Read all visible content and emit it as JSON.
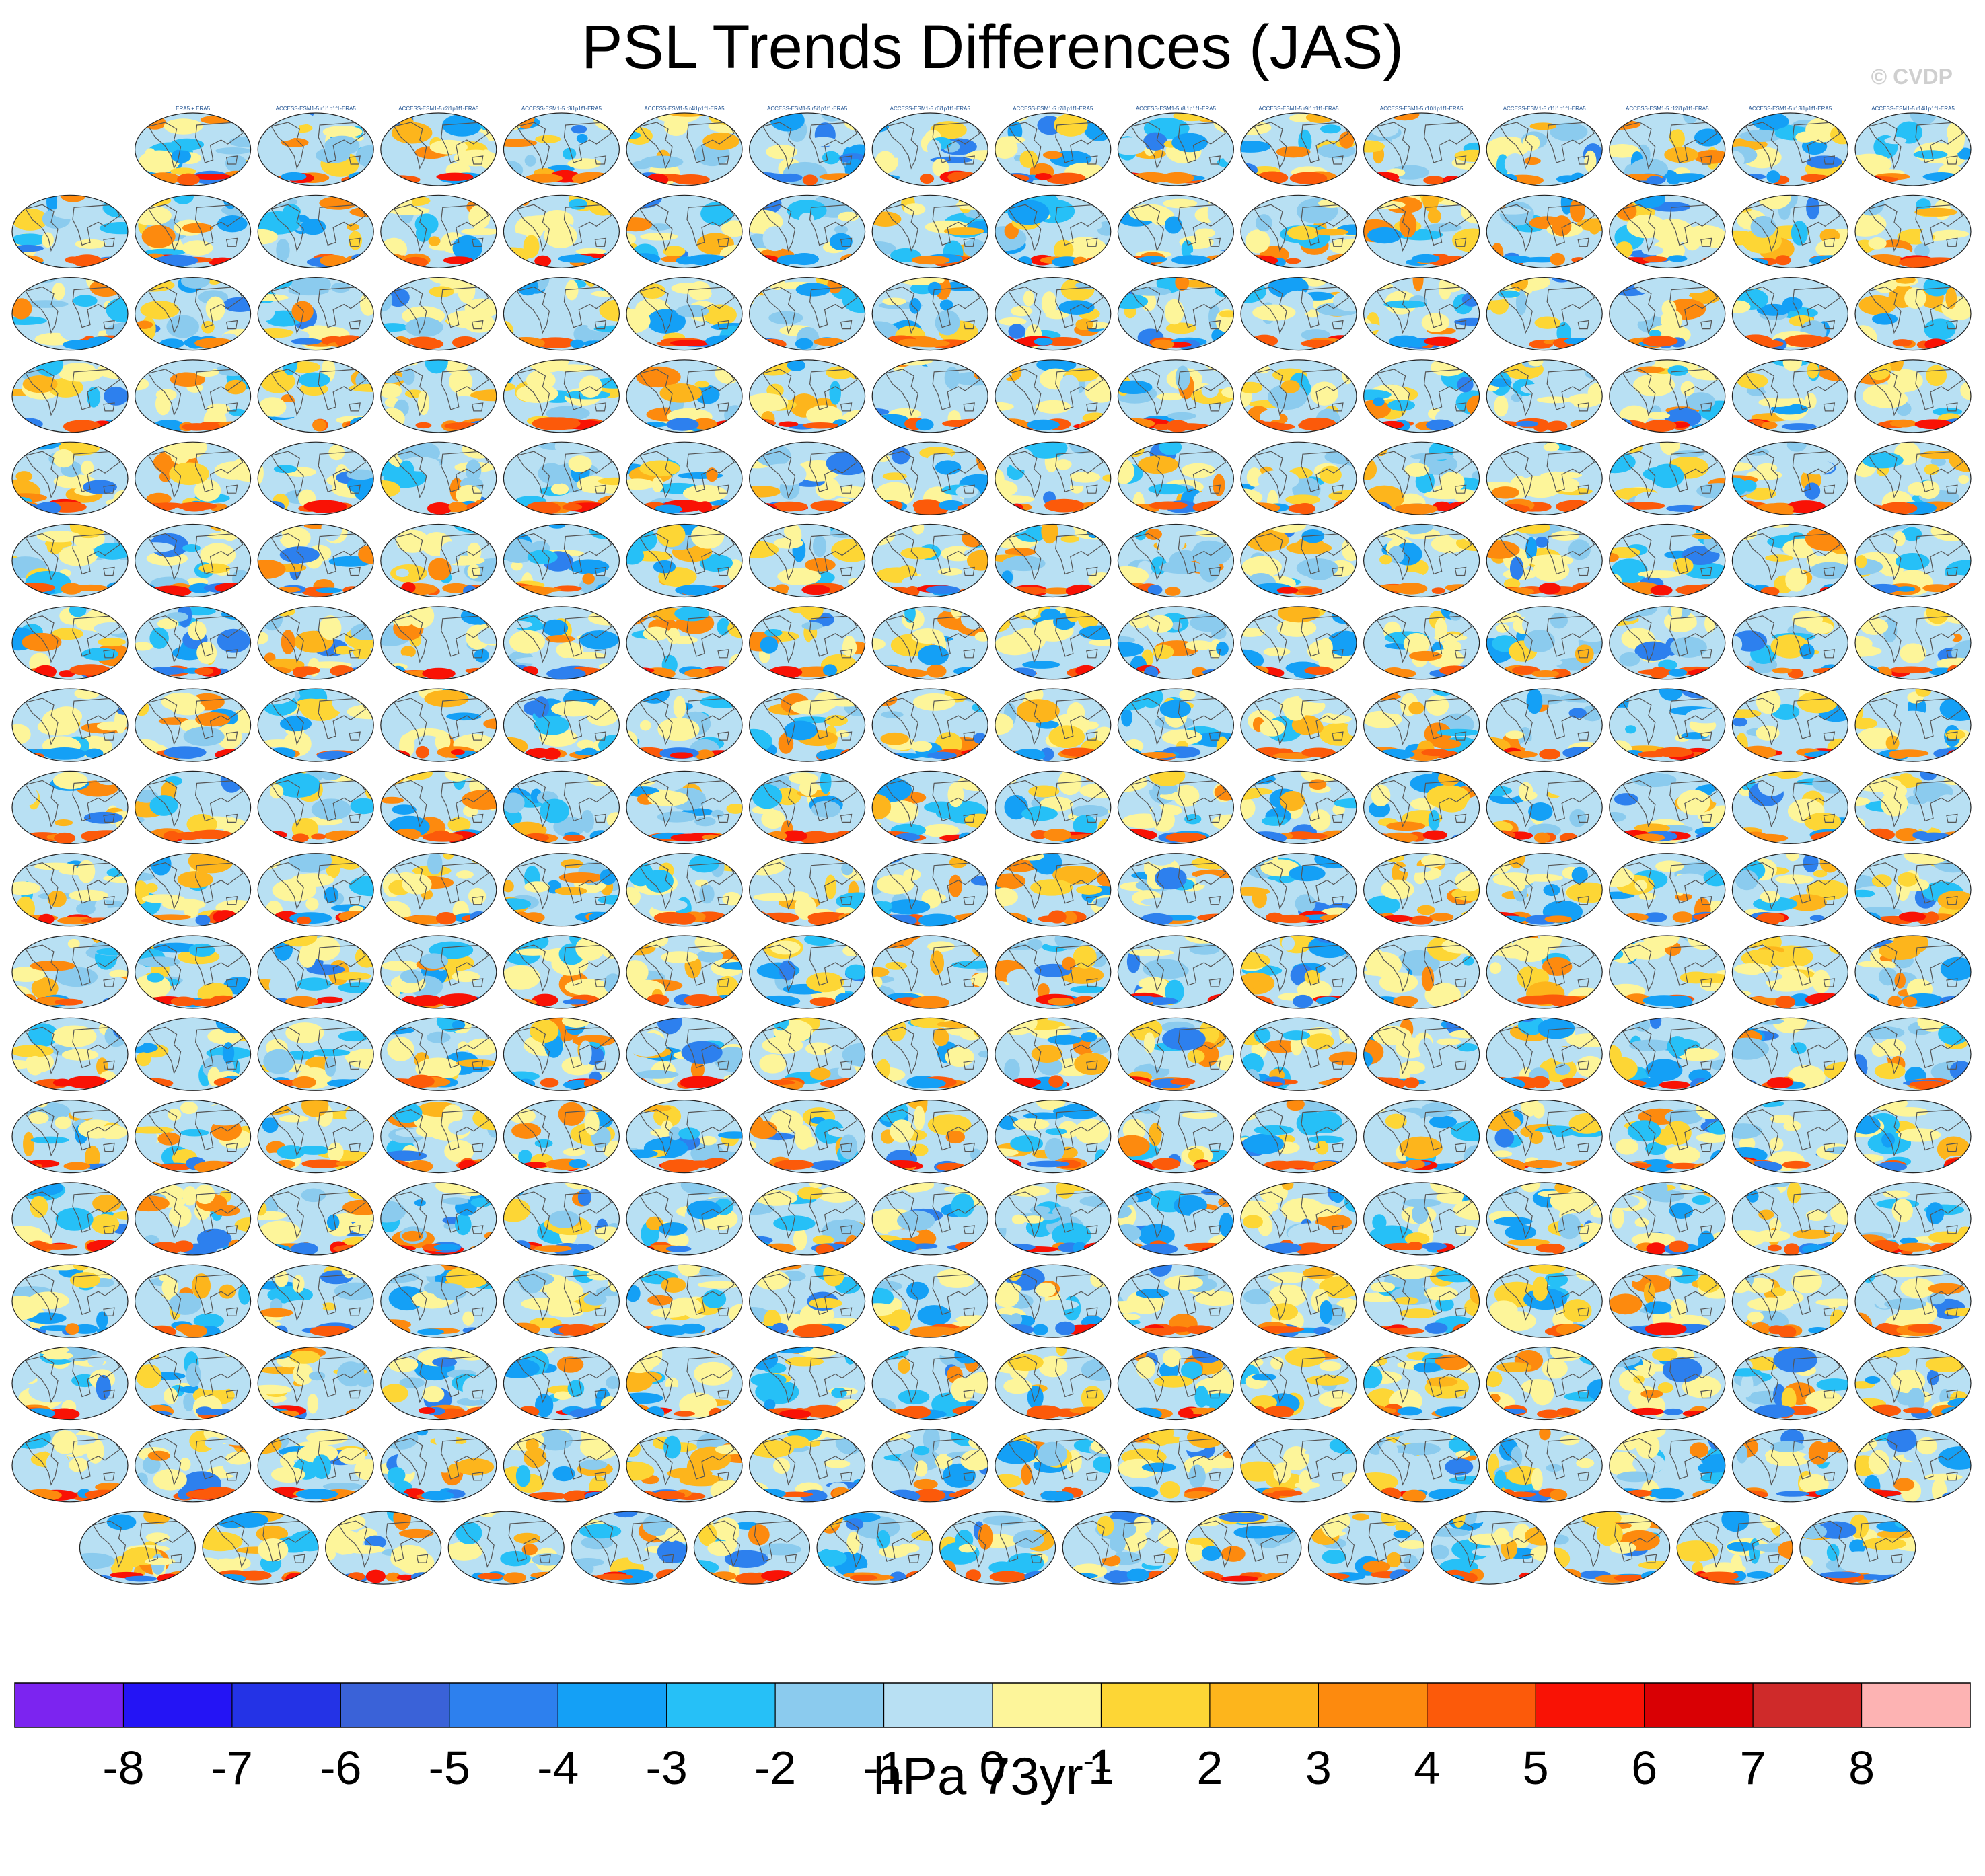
{
  "title": "PSL Trends Differences (JAS)",
  "watermark": "© CVDP",
  "chart_data": {
    "type": "heatmap",
    "title": "PSL Trends Differences (JAS)",
    "description_kind": "small-multiples global maps of sea-level-pressure trend differences",
    "panel_grid": {
      "rows": 18,
      "cols": 16,
      "last_row_panels": 15,
      "first_row_panels": 15
    },
    "panel_labels": {
      "first": "ERA5 + ERA5",
      "row1": [
        "ACCESS-ESM1-5 r1i1p1f1-ERA5",
        "ACCESS-ESM1-5 r2i1p1f1-ERA5",
        "ACCESS-ESM1-5 r3i1p1f1-ERA5",
        "ACCESS-ESM1-5 r4i1p1f1-ERA5",
        "ACCESS-ESM1-5 r5i1p1f1-ERA5",
        "ACCESS-ESM1-5 r6i1p1f1-ERA5",
        "ACCESS-ESM1-5 r7i1p1f1-ERA5",
        "ACCESS-ESM1-5 r8i1p1f1-ERA5",
        "ACCESS-ESM1-5 r9i1p1f1-ERA5",
        "ACCESS-ESM1-5 r10i1p1f1-ERA5",
        "ACCESS-ESM1-5 r11i1p1f1-ERA5",
        "ACCESS-ESM1-5 r12i1p1f1-ERA5",
        "ACCESS-ESM1-5 r13i1p1f1-ERA5",
        "ACCESS-ESM1-5 r14i1p1f1-ERA5"
      ]
    },
    "colorbar": {
      "colors": [
        "#7c24f0",
        "#2414f5",
        "#2433e6",
        "#3a62d8",
        "#2d80ee",
        "#14a0f6",
        "#26c0f7",
        "#8bcbee",
        "#b8e0f3",
        "#fdf59a",
        "#fdd635",
        "#fdb51c",
        "#fd8a0e",
        "#fc5a0a",
        "#f91205",
        "#d90004",
        "#cf2a2a",
        "#fdb3b3"
      ],
      "tick_labels": [
        "-8",
        "-7",
        "-6",
        "-5",
        "-4",
        "-3",
        "-2",
        "-1",
        "0",
        "1",
        "2",
        "3",
        "4",
        "5",
        "6",
        "7",
        "8"
      ],
      "levels": [
        -8,
        -7,
        -6,
        -5,
        -4,
        -3,
        -2,
        -1,
        0,
        1,
        2,
        3,
        4,
        5,
        6,
        7,
        8
      ],
      "units_main": "hPa 73yr",
      "units_sup": "-1"
    }
  }
}
